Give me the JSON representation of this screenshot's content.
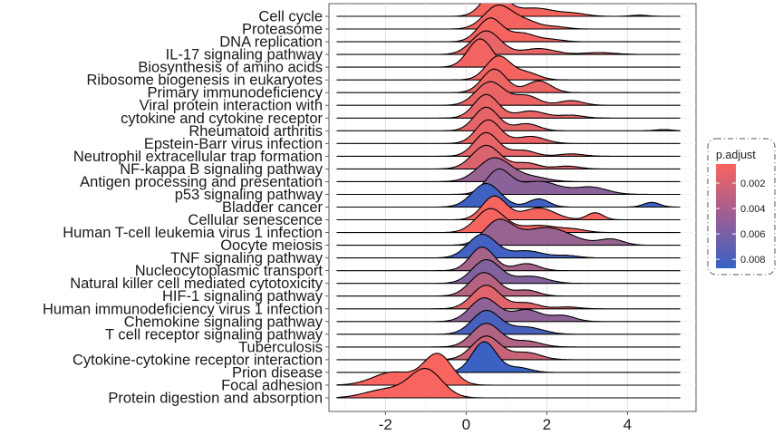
{
  "chart_data": {
    "type": "ridgeline",
    "title": "",
    "xlabel": "",
    "ylabel": "",
    "xlim": [
      -3.4,
      5.7
    ],
    "xticks": [
      -2,
      0,
      2,
      4
    ],
    "xtick_labels": [
      "-2",
      "0",
      "2",
      "4"
    ],
    "grid": true,
    "legend": {
      "title": "p.adjust",
      "position": "right",
      "range": [
        0.0005,
        0.0087
      ],
      "ticks": [
        0.002,
        0.004,
        0.006,
        0.008
      ],
      "tick_labels": [
        "0.002",
        "0.004",
        "0.006",
        "0.008"
      ],
      "low_color": "#F8645E",
      "high_color": "#3661C6"
    },
    "categories": [
      {
        "name": "Cell cycle",
        "p_adjust": 0.0006,
        "peaks": [
          [
            0.7,
            0.3,
            1.0
          ],
          [
            1.7,
            0.5,
            0.35
          ],
          [
            2.7,
            0.3,
            0.1
          ],
          [
            4.3,
            0.2,
            0.05
          ]
        ]
      },
      {
        "name": "Proteasome",
        "p_adjust": 0.0007,
        "peaks": [
          [
            0.8,
            0.35,
            1.0
          ],
          [
            1.5,
            0.3,
            0.3
          ],
          [
            2.2,
            0.3,
            0.1
          ]
        ]
      },
      {
        "name": "DNA replication",
        "p_adjust": 0.0006,
        "peaks": [
          [
            0.6,
            0.3,
            1.0
          ],
          [
            1.4,
            0.3,
            0.35
          ],
          [
            2.1,
            0.3,
            0.1
          ]
        ]
      },
      {
        "name": "IL-17 signaling pathway",
        "p_adjust": 0.0012,
        "peaks": [
          [
            0.5,
            0.35,
            1.0
          ],
          [
            1.8,
            0.4,
            0.25
          ],
          [
            3.3,
            0.4,
            0.08
          ]
        ]
      },
      {
        "name": "Biosynthesis of amino acids",
        "p_adjust": 0.0008,
        "peaks": [
          [
            0.35,
            0.3,
            1.2
          ]
        ]
      },
      {
        "name": "Ribosome biogenesis in eukaryotes",
        "p_adjust": 0.0007,
        "peaks": [
          [
            0.8,
            0.3,
            1.0
          ],
          [
            1.5,
            0.3,
            0.3
          ]
        ]
      },
      {
        "name": "Primary immunodeficiency",
        "p_adjust": 0.001,
        "peaks": [
          [
            0.7,
            0.3,
            1.0
          ],
          [
            1.8,
            0.3,
            0.5
          ]
        ]
      },
      {
        "name": "Viral protein interaction with",
        "p_adjust": 0.0011,
        "peaks": [
          [
            0.6,
            0.35,
            1.0
          ],
          [
            1.5,
            0.3,
            0.4
          ],
          [
            2.6,
            0.3,
            0.2
          ]
        ]
      },
      {
        "name": "cytokine and cytokine receptor",
        "p_adjust": 0.0012,
        "peaks": [
          [
            0.5,
            0.3,
            1.0
          ],
          [
            1.6,
            0.35,
            0.3
          ],
          [
            2.6,
            0.3,
            0.12
          ]
        ]
      },
      {
        "name": "Rheumatoid arthritis",
        "p_adjust": 0.0013,
        "peaks": [
          [
            0.5,
            0.3,
            1.0
          ],
          [
            1.5,
            0.3,
            0.3
          ],
          [
            4.9,
            0.2,
            0.05
          ]
        ]
      },
      {
        "name": "Epstein-Barr virus infection",
        "p_adjust": 0.0011,
        "peaks": [
          [
            0.55,
            0.3,
            1.0
          ],
          [
            1.6,
            0.35,
            0.3
          ]
        ]
      },
      {
        "name": "Neutrophil extracellular trap formation",
        "p_adjust": 0.0012,
        "peaks": [
          [
            0.5,
            0.3,
            1.0
          ],
          [
            1.4,
            0.3,
            0.25
          ],
          [
            2.6,
            0.3,
            0.1
          ]
        ]
      },
      {
        "name": "NF-kappa B signaling pathway",
        "p_adjust": 0.0018,
        "peaks": [
          [
            0.5,
            0.35,
            1.0
          ],
          [
            1.5,
            0.3,
            0.25
          ],
          [
            2.5,
            0.3,
            0.12
          ]
        ]
      },
      {
        "name": "Antigen processing and presentation",
        "p_adjust": 0.0045,
        "peaks": [
          [
            0.7,
            0.4,
            1.0
          ],
          [
            1.6,
            0.4,
            0.2
          ]
        ]
      },
      {
        "name": "p53 signaling pathway",
        "p_adjust": 0.0052,
        "peaks": [
          [
            0.8,
            0.3,
            1.0
          ],
          [
            1.8,
            0.5,
            0.55
          ],
          [
            3.1,
            0.4,
            0.3
          ]
        ]
      },
      {
        "name": "Bladder cancer",
        "p_adjust": 0.0083,
        "peaks": [
          [
            0.5,
            0.35,
            1.0
          ],
          [
            1.8,
            0.25,
            0.35
          ],
          [
            4.6,
            0.2,
            0.2
          ]
        ]
      },
      {
        "name": "Cellular senescence",
        "p_adjust": 0.0006,
        "peaks": [
          [
            0.7,
            0.3,
            1.0
          ],
          [
            1.8,
            0.4,
            0.5
          ],
          [
            3.2,
            0.2,
            0.3
          ]
        ]
      },
      {
        "name": "Human T-cell leukemia virus 1 infection",
        "p_adjust": 0.0007,
        "peaks": [
          [
            0.6,
            0.35,
            1.0
          ],
          [
            1.8,
            0.5,
            0.3
          ],
          [
            2.7,
            0.3,
            0.1
          ]
        ]
      },
      {
        "name": "Oocyte meiosis",
        "p_adjust": 0.0045,
        "peaks": [
          [
            0.8,
            0.35,
            1.0
          ],
          [
            2.0,
            0.6,
            0.75
          ],
          [
            3.6,
            0.3,
            0.25
          ]
        ]
      },
      {
        "name": "TNF signaling pathway",
        "p_adjust": 0.0082,
        "peaks": [
          [
            0.4,
            0.35,
            1.0
          ],
          [
            1.5,
            0.4,
            0.3
          ],
          [
            2.5,
            0.3,
            0.1
          ]
        ]
      },
      {
        "name": "Nucleocytoplasmic transport",
        "p_adjust": 0.004,
        "peaks": [
          [
            0.4,
            0.3,
            1.0
          ],
          [
            1.5,
            0.3,
            0.3
          ]
        ]
      },
      {
        "name": "Natural killer cell mediated cytotoxicity",
        "p_adjust": 0.0055,
        "peaks": [
          [
            0.5,
            0.35,
            1.0
          ],
          [
            1.6,
            0.4,
            0.3
          ]
        ]
      },
      {
        "name": "HIF-1 signaling pathway",
        "p_adjust": 0.0033,
        "peaks": [
          [
            0.45,
            0.35,
            1.0
          ],
          [
            1.5,
            0.3,
            0.25
          ]
        ]
      },
      {
        "name": "Human immunodeficiency virus 1 infection",
        "p_adjust": 0.0015,
        "peaks": [
          [
            0.5,
            0.35,
            1.0
          ],
          [
            1.5,
            0.3,
            0.25
          ],
          [
            2.5,
            0.3,
            0.08
          ]
        ]
      },
      {
        "name": "Chemokine signaling pathway",
        "p_adjust": 0.005,
        "peaks": [
          [
            0.45,
            0.35,
            1.0
          ],
          [
            1.5,
            0.35,
            0.5
          ],
          [
            2.4,
            0.3,
            0.25
          ]
        ]
      },
      {
        "name": "T cell receptor signaling pathway",
        "p_adjust": 0.008,
        "peaks": [
          [
            0.5,
            0.35,
            1.0
          ],
          [
            1.5,
            0.4,
            0.3
          ]
        ]
      },
      {
        "name": "Tuberculosis",
        "p_adjust": 0.0035,
        "peaks": [
          [
            0.5,
            0.35,
            1.0
          ],
          [
            1.5,
            0.35,
            0.25
          ]
        ]
      },
      {
        "name": "Cytokine-cytokine receptor interaction",
        "p_adjust": 0.0025,
        "peaks": [
          [
            0.5,
            0.35,
            1.0
          ],
          [
            1.5,
            0.35,
            0.3
          ]
        ]
      },
      {
        "name": "Prion disease",
        "p_adjust": 0.0085,
        "peaks": [
          [
            0.45,
            0.3,
            1.3
          ],
          [
            1.3,
            0.3,
            0.2
          ]
        ]
      },
      {
        "name": "Focal adhesion",
        "p_adjust": 0.0005,
        "peaks": [
          [
            -0.7,
            0.35,
            1.3
          ],
          [
            -1.8,
            0.5,
            0.55
          ]
        ]
      },
      {
        "name": "Protein digestion and absorption",
        "p_adjust": 0.0005,
        "peaks": [
          [
            -1.0,
            0.4,
            1.2
          ],
          [
            -2.0,
            0.5,
            0.35
          ]
        ]
      }
    ]
  }
}
